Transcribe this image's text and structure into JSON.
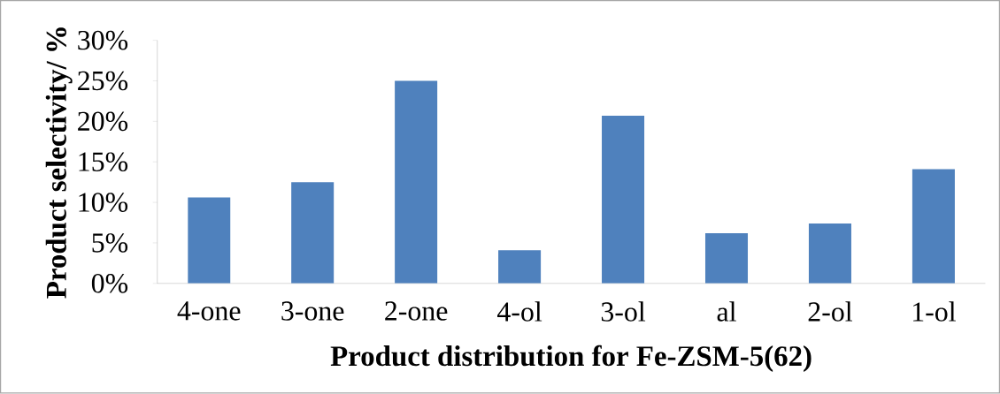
{
  "chart_data": {
    "type": "bar",
    "xlabel": "Product distribution for Fe-ZSM-5(62)",
    "ylabel": "Product selectivity/ %",
    "categories": [
      "4-one",
      "3-one",
      "2-one",
      "4-ol",
      "3-ol",
      "al",
      "2-ol",
      "1-ol"
    ],
    "values": [
      10.6,
      12.5,
      25.0,
      4.1,
      20.7,
      6.2,
      7.4,
      14.1
    ],
    "color": "#4f81bd",
    "ylim": [
      0,
      30
    ],
    "yticks": [
      {
        "value": 0,
        "label": "0%"
      },
      {
        "value": 5,
        "label": "5%"
      },
      {
        "value": 10,
        "label": "10%"
      },
      {
        "value": 15,
        "label": "15%"
      },
      {
        "value": 20,
        "label": "20%"
      },
      {
        "value": 25,
        "label": "25%"
      },
      {
        "value": 30,
        "label": "30%"
      }
    ],
    "grid": false
  }
}
